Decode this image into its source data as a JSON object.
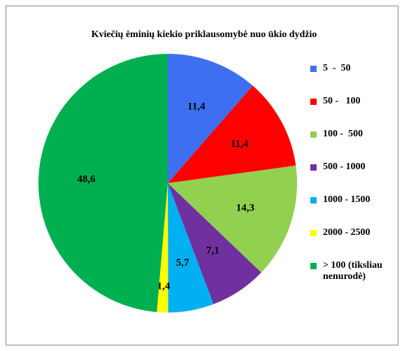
{
  "chart_data": {
    "type": "pie",
    "title": "Kviečių ėminių kiekio priklausomybė nuo ūkio dydžio",
    "categories": [
      "5  -  50",
      "50 -   100",
      "100 -  500",
      "500 - 1000",
      "1000 - 1500",
      "2000 - 2500",
      "> 100 (tiksliau nenurodė)"
    ],
    "values": [
      11.4,
      11.4,
      14.3,
      7.1,
      5.7,
      1.4,
      48.6
    ],
    "value_labels": [
      "11,4",
      "11,4",
      "14,3",
      "7,1",
      "5,7",
      "1,4",
      "48,6"
    ],
    "colors": [
      "#3d6ff0",
      "#ff0000",
      "#92d050",
      "#7030a0",
      "#00b0f0",
      "#ffff00",
      "#00b050"
    ],
    "legend": "right"
  }
}
